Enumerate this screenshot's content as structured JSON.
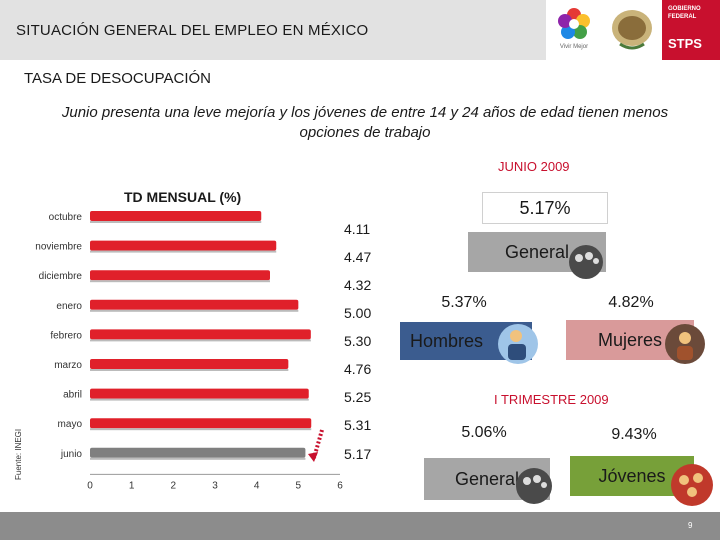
{
  "header": {
    "title": "SITUACIÓN GENERAL DEL EMPLEO EN MÉXICO",
    "logo1_caption": "Vivir Mejor",
    "logo3_text1": "GOBIERNO FEDERAL",
    "logo3_text2": "STPS"
  },
  "section_title": "TASA DE DESOCUPACIÓN",
  "subtitle": "Junio presenta una leve mejoría y los jóvenes de entre 14 y 24 años de edad tienen menos opciones de trabajo",
  "monthly_period": "JUNIO 2009",
  "quarter_period": "I TRIMESTRE 2009",
  "source_note": "Fuente: INEGI",
  "chart_data": {
    "type": "bar",
    "orientation": "horizontal",
    "title": "TD MENSUAL (%)",
    "categories": [
      "octubre",
      "noviembre",
      "diciembre",
      "enero",
      "febrero",
      "marzo",
      "abril",
      "mayo",
      "junio"
    ],
    "values": [
      4.11,
      4.47,
      4.32,
      5.0,
      5.3,
      4.76,
      5.25,
      5.31,
      5.17
    ],
    "value_labels": [
      "4.11",
      "4.47",
      "4.32",
      "5.00",
      "5.30",
      "4.76",
      "5.25",
      "5.31",
      "5.17"
    ],
    "xlim": [
      0,
      6
    ],
    "xticks": [
      "0",
      "1",
      "2",
      "3",
      "4",
      "5",
      "6"
    ],
    "colors": {
      "bar": "#e0202a",
      "highlight": "#7f7f7f"
    },
    "grid": false
  },
  "june_summary": {
    "general_value": "5.17%",
    "general_label": "General",
    "hombres_value": "5.37%",
    "hombres_label": "Hombres",
    "mujeres_value": "4.82%",
    "mujeres_label": "Mujeres"
  },
  "quarter_summary": {
    "general_value": "5.06%",
    "general_label": "General",
    "jovenes_value": "9.43%",
    "jovenes_label": "Jóvenes"
  },
  "page_number": "9",
  "colors": {
    "general": "#a6a6a6",
    "hombres": "#3b5c8f",
    "mujeres": "#d99a9a",
    "jovenes": "#77a039",
    "accent": "#c8102e"
  }
}
